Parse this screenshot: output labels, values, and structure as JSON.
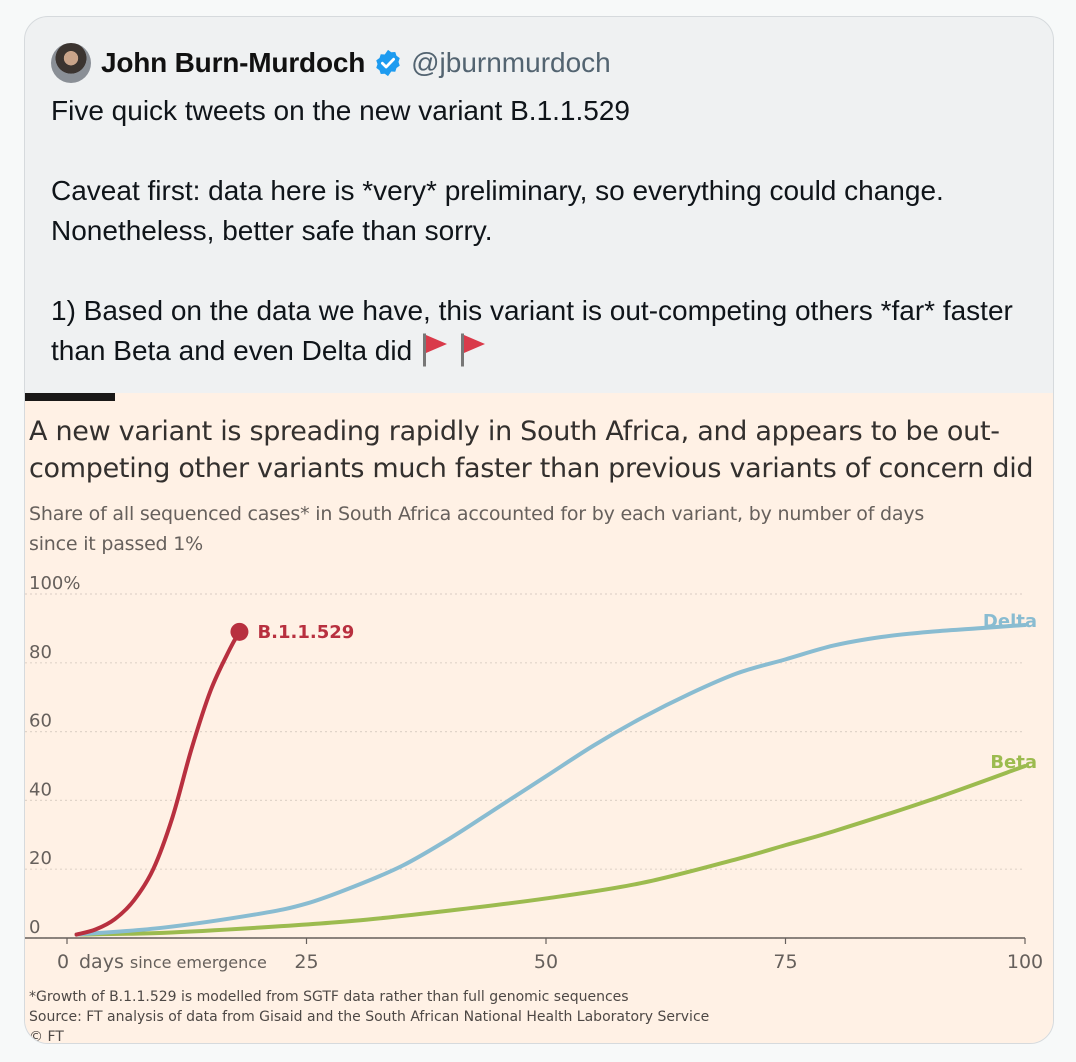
{
  "tweet": {
    "author_name": "John Burn-Murdoch",
    "author_handle": "@jburnmurdoch",
    "verified_icon": "verified-badge-icon",
    "text_line1": "Five quick tweets on the new variant B.1.1.529",
    "text_para2": "Caveat first: data here is *very* preliminary, so everything could change. Nonetheless, better safe than sorry.",
    "text_para3": "1) Based on the data we have, this variant is out-competing others *far* faster than Beta and even Delta did",
    "emoji": [
      "triangular-flag-icon",
      "triangular-flag-icon"
    ]
  },
  "figure": {
    "title": "A new variant is spreading rapidly in South Africa, and appears to be out-competing other variants much faster than previous variants of concern did",
    "subtitle": "Share of all sequenced cases* in South Africa accounted for by each variant, by number of days since it passed 1%",
    "footnote": "*Growth of B.1.1.529 is modelled from SGTF data rather than full genomic sequences",
    "source": "Source: FT analysis of data from Gisaid and the South African National Health Laboratory Service",
    "credit": "© FT"
  },
  "colors": {
    "background": "#fff1e5",
    "b11529": "#b8303f",
    "delta": "#89bcd1",
    "beta": "#9cbb4f",
    "tweet_bg": "#eff1f2"
  },
  "chart_data": {
    "type": "line",
    "xlabel": "days since emergence",
    "ylim": [
      0,
      100
    ],
    "xlim": [
      0,
      100
    ],
    "y_ticks": [
      "0",
      "20",
      "40",
      "60",
      "80",
      "100%"
    ],
    "y_tick_values": [
      0,
      20,
      40,
      60,
      80,
      100
    ],
    "x_ticks": [
      "0",
      "25",
      "50",
      "75",
      "100"
    ],
    "x_tick_values": [
      0,
      25,
      50,
      75,
      100
    ],
    "grid": true,
    "series": [
      {
        "name": "B.1.1.529",
        "color": "#b8303f",
        "end_marker": true,
        "x": [
          1,
          3,
          5,
          7,
          9,
          11,
          13,
          15,
          17,
          18
        ],
        "y": [
          1,
          2.5,
          5.5,
          11,
          20,
          35,
          55,
          72,
          84,
          89
        ]
      },
      {
        "name": "Delta",
        "color": "#89bcd1",
        "end_marker": false,
        "x": [
          1,
          10,
          20,
          25,
          30,
          35,
          40,
          45,
          50,
          55,
          60,
          65,
          70,
          75,
          80,
          85,
          90,
          95,
          100
        ],
        "y": [
          1,
          3,
          7,
          10,
          15,
          21,
          29,
          38,
          47,
          56,
          64,
          71,
          77,
          81,
          85,
          87.5,
          89,
          90,
          91
        ]
      },
      {
        "name": "Beta",
        "color": "#9cbb4f",
        "end_marker": false,
        "x": [
          1,
          10,
          20,
          30,
          40,
          50,
          60,
          70,
          75,
          80,
          90,
          100
        ],
        "y": [
          1,
          1.5,
          3,
          5,
          8,
          11.5,
          16,
          23,
          27,
          31,
          40,
          50
        ]
      }
    ]
  }
}
